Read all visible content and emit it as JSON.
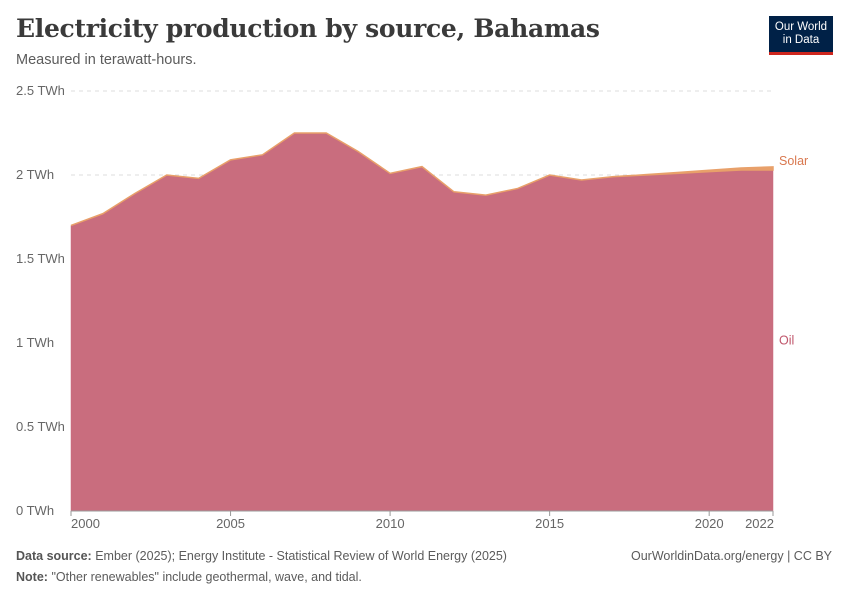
{
  "header": {
    "title": "Electricity production by source, Bahamas",
    "subtitle": "Measured in terawatt-hours."
  },
  "logo": {
    "line1": "Our World",
    "line2": "in Data",
    "bg": "#002147",
    "accent": "#ce261e"
  },
  "footer": {
    "source_label": "Data source:",
    "source_text": "Ember (2025); Energy Institute - Statistical Review of World Energy (2025)",
    "note_label": "Note:",
    "note_text": "\"Other renewables\" include geothermal, wave, and tidal.",
    "credit": "OurWorldinData.org/energy | CC BY"
  },
  "chart_data": {
    "type": "area",
    "stacked": true,
    "x": [
      2000,
      2001,
      2002,
      2003,
      2004,
      2005,
      2006,
      2007,
      2008,
      2009,
      2010,
      2011,
      2012,
      2013,
      2014,
      2015,
      2016,
      2017,
      2018,
      2019,
      2020,
      2021,
      2022
    ],
    "series": [
      {
        "name": "Oil",
        "color": "#c96d7e",
        "values": [
          1.7,
          1.77,
          1.89,
          2.0,
          1.98,
          2.09,
          2.12,
          2.25,
          2.25,
          2.14,
          2.01,
          2.05,
          1.9,
          1.88,
          1.92,
          2.0,
          1.97,
          1.99,
          2.0,
          2.01,
          2.02,
          2.03,
          2.03
        ]
      },
      {
        "name": "Solar",
        "color": "#e8a06a",
        "values": [
          0,
          0,
          0,
          0,
          0,
          0,
          0,
          0,
          0,
          0,
          0,
          0,
          0,
          0,
          0,
          0,
          0,
          0,
          0.002,
          0.005,
          0.008,
          0.012,
          0.018
        ]
      }
    ],
    "ylim": [
      0,
      2.5
    ],
    "yticks": [
      {
        "value": 0,
        "label": "0 TWh"
      },
      {
        "value": 0.5,
        "label": "0.5 TWh"
      },
      {
        "value": 1,
        "label": "1 TWh"
      },
      {
        "value": 1.5,
        "label": "1.5 TWh"
      },
      {
        "value": 2,
        "label": "2 TWh"
      },
      {
        "value": 2.5,
        "label": "2.5 TWh"
      }
    ],
    "xticks": [
      2000,
      2005,
      2010,
      2015,
      2020,
      2022
    ],
    "grid": true,
    "legend": "right-inline-labels",
    "label_colors": {
      "Oil": "#c0566b",
      "Solar": "#d9784f"
    }
  }
}
